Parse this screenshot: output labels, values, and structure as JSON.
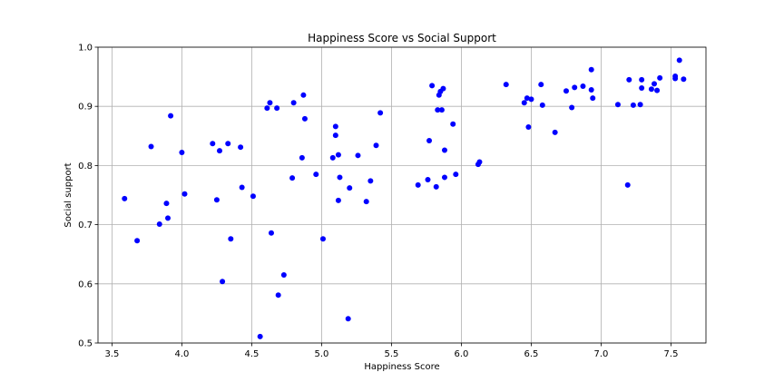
{
  "chart_data": {
    "type": "scatter",
    "title": "Happiness Score vs Social Support",
    "xlabel": "Happiness Score",
    "ylabel": "Social support",
    "xlim": [
      3.4,
      7.75
    ],
    "ylim": [
      0.5,
      1.0
    ],
    "xticks": [
      3.5,
      4.0,
      4.5,
      5.0,
      5.5,
      6.0,
      6.5,
      7.0,
      7.5
    ],
    "xtick_labels": [
      "3.5",
      "4.0",
      "4.5",
      "5.0",
      "5.5",
      "6.0",
      "6.5",
      "7.0",
      "7.5"
    ],
    "yticks": [
      0.5,
      0.6,
      0.7,
      0.8,
      0.9,
      1.0
    ],
    "ytick_labels": [
      "0.5",
      "0.6",
      "0.7",
      "0.8",
      "0.9",
      "1.0"
    ],
    "grid": true,
    "marker_color": "#0000ff",
    "points": [
      [
        3.59,
        0.744
      ],
      [
        3.68,
        0.673
      ],
      [
        3.78,
        0.832
      ],
      [
        3.84,
        0.701
      ],
      [
        3.89,
        0.736
      ],
      [
        3.9,
        0.711
      ],
      [
        3.92,
        0.884
      ],
      [
        4.0,
        0.822
      ],
      [
        4.02,
        0.752
      ],
      [
        4.22,
        0.837
      ],
      [
        4.25,
        0.742
      ],
      [
        4.27,
        0.825
      ],
      [
        4.29,
        0.604
      ],
      [
        4.33,
        0.837
      ],
      [
        4.35,
        0.676
      ],
      [
        4.42,
        0.831
      ],
      [
        4.43,
        0.763
      ],
      [
        4.51,
        0.748
      ],
      [
        4.56,
        0.511
      ],
      [
        4.61,
        0.897
      ],
      [
        4.63,
        0.906
      ],
      [
        4.64,
        0.686
      ],
      [
        4.68,
        0.897
      ],
      [
        4.69,
        0.581
      ],
      [
        4.73,
        0.615
      ],
      [
        4.79,
        0.779
      ],
      [
        4.8,
        0.906
      ],
      [
        4.86,
        0.813
      ],
      [
        4.87,
        0.919
      ],
      [
        4.88,
        0.879
      ],
      [
        4.96,
        0.785
      ],
      [
        5.01,
        0.676
      ],
      [
        5.08,
        0.813
      ],
      [
        5.1,
        0.851
      ],
      [
        5.1,
        0.866
      ],
      [
        5.12,
        0.818
      ],
      [
        5.12,
        0.741
      ],
      [
        5.13,
        0.78
      ],
      [
        5.19,
        0.541
      ],
      [
        5.2,
        0.762
      ],
      [
        5.26,
        0.817
      ],
      [
        5.32,
        0.739
      ],
      [
        5.35,
        0.774
      ],
      [
        5.39,
        0.834
      ],
      [
        5.42,
        0.889
      ],
      [
        5.69,
        0.767
      ],
      [
        5.76,
        0.776
      ],
      [
        5.77,
        0.842
      ],
      [
        5.79,
        0.935
      ],
      [
        5.82,
        0.764
      ],
      [
        5.83,
        0.894
      ],
      [
        5.84,
        0.919
      ],
      [
        5.85,
        0.925
      ],
      [
        5.86,
        0.894
      ],
      [
        5.87,
        0.93
      ],
      [
        5.88,
        0.826
      ],
      [
        5.88,
        0.78
      ],
      [
        5.94,
        0.87
      ],
      [
        5.96,
        0.785
      ],
      [
        6.12,
        0.802
      ],
      [
        6.13,
        0.806
      ],
      [
        6.32,
        0.937
      ],
      [
        6.45,
        0.906
      ],
      [
        6.47,
        0.914
      ],
      [
        6.48,
        0.865
      ],
      [
        6.5,
        0.912
      ],
      [
        6.57,
        0.937
      ],
      [
        6.58,
        0.902
      ],
      [
        6.67,
        0.856
      ],
      [
        6.75,
        0.926
      ],
      [
        6.79,
        0.898
      ],
      [
        6.81,
        0.932
      ],
      [
        6.87,
        0.934
      ],
      [
        6.93,
        0.928
      ],
      [
        6.93,
        0.962
      ],
      [
        6.94,
        0.914
      ],
      [
        7.12,
        0.903
      ],
      [
        7.19,
        0.767
      ],
      [
        7.2,
        0.945
      ],
      [
        7.23,
        0.902
      ],
      [
        7.28,
        0.903
      ],
      [
        7.29,
        0.945
      ],
      [
        7.29,
        0.931
      ],
      [
        7.36,
        0.929
      ],
      [
        7.38,
        0.938
      ],
      [
        7.4,
        0.927
      ],
      [
        7.42,
        0.948
      ],
      [
        7.53,
        0.951
      ],
      [
        7.53,
        0.947
      ],
      [
        7.56,
        0.978
      ],
      [
        7.59,
        0.946
      ]
    ]
  }
}
